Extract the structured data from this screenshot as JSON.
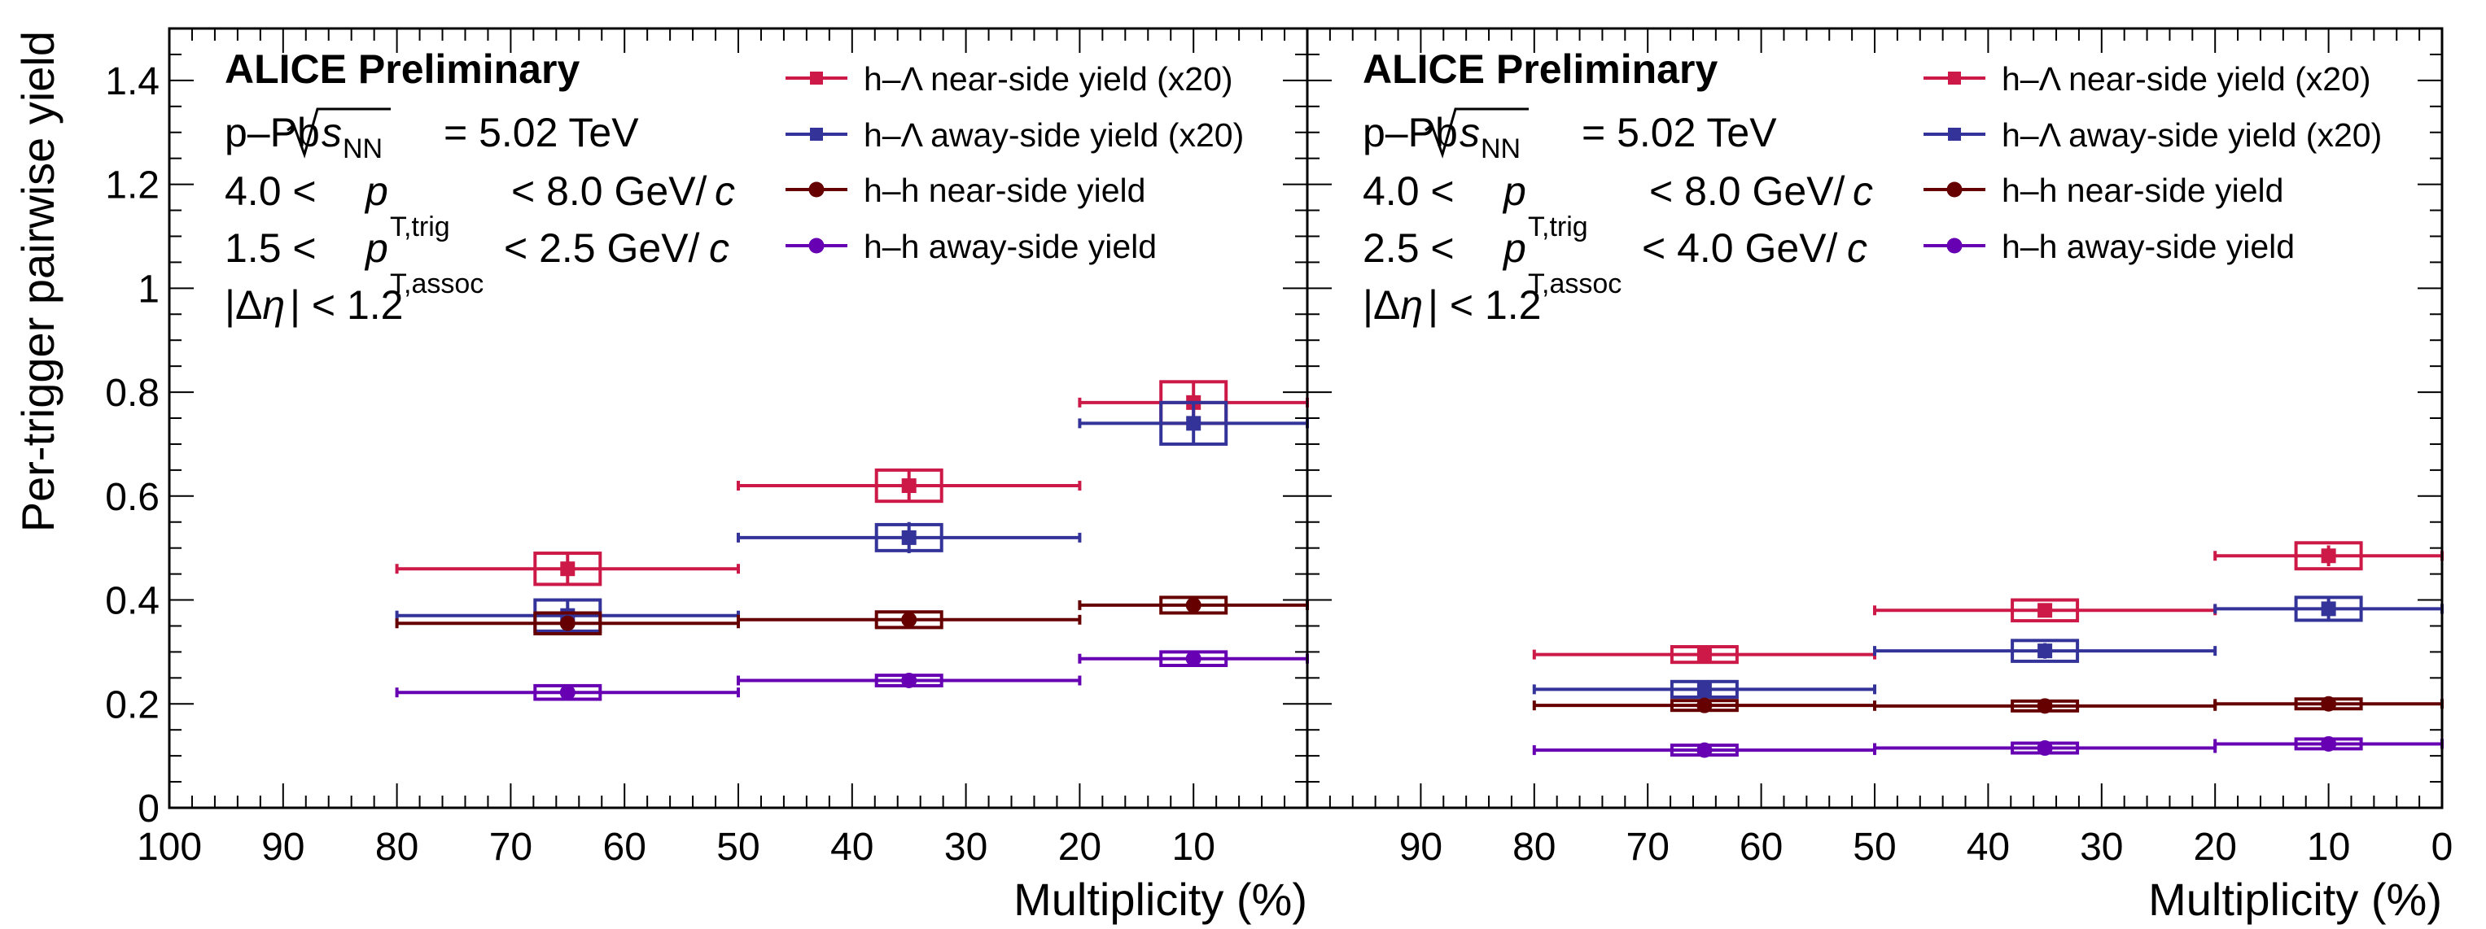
{
  "figure": {
    "ylabel": "Per-trigger pairwise yield",
    "xlabel": "Multiplicity (%)",
    "ylim": [
      0,
      1.5
    ],
    "yticks": [
      "0",
      "0.2",
      "0.4",
      "0.6",
      "0.8",
      "1",
      "1.2",
      "1.4"
    ],
    "colors": {
      "h_lambda_near": "#cc1947",
      "h_lambda_away": "#333399",
      "hh_near": "#660000",
      "hh_away": "#6600b2"
    }
  },
  "chart_data": [
    {
      "type": "scatter",
      "panel": "left",
      "experiment": "ALICE Preliminary",
      "info": {
        "system": "p–Pb",
        "energy": "= 5.02 TeV",
        "trig_low": "4.0 <",
        "trig_high": "< 8.0 GeV/",
        "assoc_low": "1.5 <",
        "assoc_high": "< 2.5 GeV/",
        "eta": "| < 1.2"
      },
      "xlabel": "Multiplicity (%)",
      "xlim": [
        100,
        0
      ],
      "xticks": [
        "100",
        "90",
        "80",
        "70",
        "60",
        "50",
        "40",
        "30",
        "20",
        "10"
      ],
      "legend": [
        "h–Λ near-side yield (x20)",
        "h–Λ away-side yield (x20)",
        "h–h near-side yield",
        "h–h away-side yield"
      ],
      "series": [
        {
          "name": "h–Λ near-side yield (x20)",
          "marker": "square",
          "points": [
            {
              "x": 65,
              "x_low": 80,
              "x_high": 50,
              "y": 0.46,
              "stat": 0.03,
              "sys": 0.03
            },
            {
              "x": 35,
              "x_low": 50,
              "x_high": 20,
              "y": 0.62,
              "stat": 0.03,
              "sys": 0.03
            },
            {
              "x": 10,
              "x_low": 20,
              "x_high": 0,
              "y": 0.78,
              "stat": 0.04,
              "sys": 0.04
            }
          ]
        },
        {
          "name": "h–Λ away-side yield (x20)",
          "marker": "square",
          "points": [
            {
              "x": 65,
              "x_low": 80,
              "x_high": 50,
              "y": 0.37,
              "stat": 0.03,
              "sys": 0.03
            },
            {
              "x": 35,
              "x_low": 50,
              "x_high": 20,
              "y": 0.52,
              "stat": 0.03,
              "sys": 0.025
            },
            {
              "x": 10,
              "x_low": 20,
              "x_high": 0,
              "y": 0.74,
              "stat": 0.04,
              "sys": 0.04
            }
          ]
        },
        {
          "name": "h–h near-side yield",
          "marker": "circle",
          "points": [
            {
              "x": 65,
              "x_low": 80,
              "x_high": 50,
              "y": 0.355,
              "stat": 0.005,
              "sys": 0.02
            },
            {
              "x": 35,
              "x_low": 50,
              "x_high": 20,
              "y": 0.362,
              "stat": 0.005,
              "sys": 0.015
            },
            {
              "x": 10,
              "x_low": 20,
              "x_high": 0,
              "y": 0.39,
              "stat": 0.005,
              "sys": 0.015
            }
          ]
        },
        {
          "name": "h–h away-side yield",
          "marker": "circle",
          "points": [
            {
              "x": 65,
              "x_low": 80,
              "x_high": 50,
              "y": 0.222,
              "stat": 0.004,
              "sys": 0.013
            },
            {
              "x": 35,
              "x_low": 50,
              "x_high": 20,
              "y": 0.245,
              "stat": 0.004,
              "sys": 0.01
            },
            {
              "x": 10,
              "x_low": 20,
              "x_high": 0,
              "y": 0.287,
              "stat": 0.004,
              "sys": 0.013
            }
          ]
        }
      ]
    },
    {
      "type": "scatter",
      "panel": "right",
      "experiment": "ALICE Preliminary",
      "info": {
        "system": "p–Pb",
        "energy": "= 5.02 TeV",
        "trig_low": "4.0 <",
        "trig_high": "< 8.0 GeV/",
        "assoc_low": "2.5 <",
        "assoc_high": "< 4.0 GeV/",
        "eta": "| < 1.2"
      },
      "xlabel": "Multiplicity (%)",
      "xlim": [
        100,
        0
      ],
      "xticks": [
        "",
        "90",
        "80",
        "70",
        "60",
        "50",
        "40",
        "30",
        "20",
        "10",
        "0"
      ],
      "legend": [
        "h–Λ near-side yield (x20)",
        "h–Λ away-side yield (x20)",
        "h–h near-side yield",
        "h–h away-side yield"
      ],
      "series": [
        {
          "name": "h–Λ near-side yield (x20)",
          "marker": "square",
          "points": [
            {
              "x": 65,
              "x_low": 80,
              "x_high": 50,
              "y": 0.295,
              "stat": 0.012,
              "sys": 0.015
            },
            {
              "x": 35,
              "x_low": 50,
              "x_high": 20,
              "y": 0.38,
              "stat": 0.012,
              "sys": 0.02
            },
            {
              "x": 10,
              "x_low": 20,
              "x_high": 0,
              "y": 0.485,
              "stat": 0.02,
              "sys": 0.025
            }
          ]
        },
        {
          "name": "h–Λ away-side yield (x20)",
          "marker": "square",
          "points": [
            {
              "x": 65,
              "x_low": 80,
              "x_high": 50,
              "y": 0.228,
              "stat": 0.012,
              "sys": 0.015
            },
            {
              "x": 35,
              "x_low": 50,
              "x_high": 20,
              "y": 0.302,
              "stat": 0.015,
              "sys": 0.02
            },
            {
              "x": 10,
              "x_low": 20,
              "x_high": 0,
              "y": 0.383,
              "stat": 0.02,
              "sys": 0.022
            }
          ]
        },
        {
          "name": "h–h near-side yield",
          "marker": "circle",
          "points": [
            {
              "x": 65,
              "x_low": 80,
              "x_high": 50,
              "y": 0.197,
              "stat": 0.003,
              "sys": 0.008
            },
            {
              "x": 35,
              "x_low": 50,
              "x_high": 20,
              "y": 0.196,
              "stat": 0.003,
              "sys": 0.008
            },
            {
              "x": 10,
              "x_low": 20,
              "x_high": 0,
              "y": 0.2,
              "stat": 0.003,
              "sys": 0.008
            }
          ]
        },
        {
          "name": "h–h away-side yield",
          "marker": "circle",
          "points": [
            {
              "x": 65,
              "x_low": 80,
              "x_high": 50,
              "y": 0.111,
              "stat": 0.002,
              "sys": 0.006
            },
            {
              "x": 35,
              "x_low": 50,
              "x_high": 20,
              "y": 0.115,
              "stat": 0.002,
              "sys": 0.006
            },
            {
              "x": 10,
              "x_low": 20,
              "x_high": 0,
              "y": 0.123,
              "stat": 0.002,
              "sys": 0.006
            }
          ]
        }
      ]
    }
  ]
}
